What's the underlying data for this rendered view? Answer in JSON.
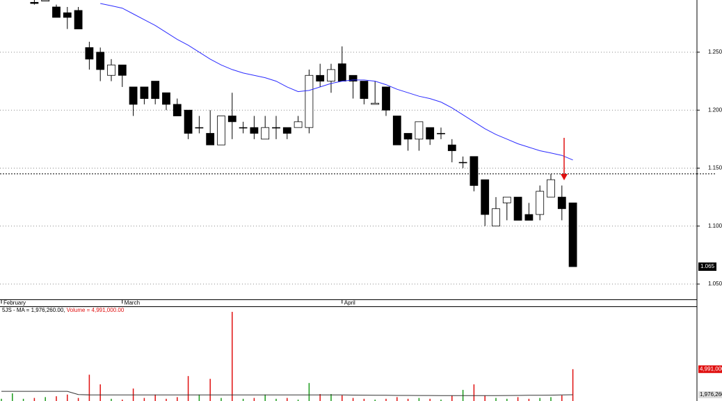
{
  "chart_data": [
    {
      "type": "candlestick",
      "categories": [
        "February",
        null,
        null,
        null,
        null,
        null,
        null,
        null,
        null,
        null,
        null,
        "March",
        null,
        null,
        null,
        null,
        null,
        null,
        null,
        null,
        null,
        null,
        null,
        null,
        null,
        null,
        null,
        null,
        null,
        null,
        null,
        "April",
        null,
        null,
        null,
        null,
        null,
        null,
        null,
        null,
        null,
        null,
        null,
        null,
        null,
        null,
        null,
        null,
        null,
        null,
        null,
        null,
        null
      ],
      "open": [
        null,
        null,
        null,
        1.293,
        1.294,
        1.289,
        1.284,
        1.286,
        1.254,
        1.25,
        1.23,
        1.239,
        1.22,
        1.22,
        1.225,
        1.215,
        1.205,
        1.2,
        1.185,
        1.18,
        1.17,
        1.195,
        1.185,
        1.185,
        1.175,
        1.185,
        1.185,
        1.185,
        1.185,
        1.23,
        1.225,
        1.24,
        1.23,
        1.225,
        1.205,
        1.22,
        1.195,
        1.18,
        1.175,
        1.185,
        1.18,
        1.17,
        1.155,
        1.16,
        1.14,
        1.1,
        1.12,
        1.125,
        1.11,
        1.11,
        1.125,
        1.125,
        1.12
      ],
      "high": [
        null,
        null,
        null,
        1.295,
        1.295,
        1.291,
        1.289,
        1.289,
        1.259,
        1.254,
        1.244,
        1.239,
        1.22,
        1.22,
        1.225,
        1.215,
        1.21,
        1.2,
        1.195,
        1.2,
        1.195,
        1.215,
        1.19,
        1.195,
        1.195,
        1.195,
        1.185,
        1.195,
        1.235,
        1.24,
        1.24,
        1.255,
        1.23,
        1.225,
        1.225,
        1.22,
        1.195,
        1.18,
        1.19,
        1.185,
        1.185,
        1.175,
        1.16,
        1.16,
        1.14,
        1.125,
        1.125,
        1.125,
        1.12,
        1.135,
        1.145,
        1.135,
        1.12
      ],
      "low": [
        null,
        null,
        null,
        1.291,
        1.294,
        1.28,
        1.27,
        1.27,
        1.235,
        1.225,
        1.225,
        1.22,
        1.195,
        1.205,
        1.205,
        1.2,
        1.195,
        1.175,
        1.18,
        1.17,
        1.17,
        1.175,
        1.18,
        1.175,
        1.175,
        1.175,
        1.175,
        1.185,
        1.18,
        1.22,
        1.215,
        1.225,
        1.21,
        1.205,
        1.205,
        1.195,
        1.17,
        1.165,
        1.165,
        1.17,
        1.175,
        1.155,
        1.15,
        1.13,
        1.1,
        1.1,
        1.105,
        1.105,
        1.105,
        1.105,
        1.125,
        1.105,
        1.065
      ],
      "close": [
        null,
        null,
        null,
        1.292,
        1.295,
        1.28,
        1.28,
        1.27,
        1.244,
        1.235,
        1.239,
        1.23,
        1.205,
        1.21,
        1.21,
        1.205,
        1.195,
        1.18,
        1.185,
        1.17,
        1.195,
        1.19,
        1.185,
        1.18,
        1.185,
        1.185,
        1.18,
        1.19,
        1.23,
        1.225,
        1.235,
        1.225,
        1.225,
        1.21,
        1.206,
        1.2,
        1.17,
        1.175,
        1.19,
        1.175,
        1.18,
        1.165,
        1.155,
        1.135,
        1.11,
        1.115,
        1.125,
        1.105,
        1.105,
        1.13,
        1.14,
        1.115,
        1.065
      ],
      "ma": [
        null,
        null,
        null,
        null,
        null,
        null,
        null,
        null,
        null,
        1.292,
        1.29,
        1.288,
        1.283,
        1.278,
        1.273,
        1.267,
        1.261,
        1.256,
        1.25,
        1.244,
        1.239,
        1.235,
        1.232,
        1.23,
        1.228,
        1.225,
        1.22,
        1.216,
        1.217,
        1.22,
        1.223,
        1.225,
        1.226,
        1.226,
        1.225,
        1.222,
        1.218,
        1.215,
        1.212,
        1.21,
        1.207,
        1.202,
        1.196,
        1.19,
        1.184,
        1.179,
        1.175,
        1.171,
        1.168,
        1.165,
        1.163,
        1.161,
        1.157
      ],
      "ma_color": "#2b2bff",
      "up_color": "#ffffff",
      "down_color": "#000000",
      "reference_line": 1.145,
      "last_price": {
        "value": 1.065,
        "label": "1.065"
      },
      "ylim": [
        1.038,
        1.295
      ],
      "yticks": [
        {
          "value": 1.05,
          "label": "1.050"
        },
        {
          "value": 1.1,
          "label": "1.100"
        },
        {
          "value": 1.15,
          "label": "1.150"
        },
        {
          "value": 1.2,
          "label": "1.200"
        },
        {
          "value": 1.25,
          "label": "1.250"
        }
      ],
      "grid": true
    },
    {
      "type": "bar",
      "legend_text": [
        "5JS - MA = 1,976,260.00,",
        "Volume = 4,991,000.00"
      ],
      "values": [
        1500000,
        2140000,
        1500000,
        1600000,
        1700000,
        1800000,
        2000000,
        1600000,
        4340000,
        3200000,
        1500000,
        1400000,
        2710000,
        1600000,
        2000000,
        1500000,
        1700000,
        4180000,
        2000000,
        3850000,
        1600000,
        11750000,
        1500000,
        1600000,
        2000000,
        1500000,
        1600000,
        1400000,
        3360000,
        2060000,
        2060000,
        1900000,
        1600000,
        1500000,
        1400000,
        1500000,
        1700000,
        1500000,
        1600000,
        1500000,
        1400000,
        1900000,
        2550000,
        3200000,
        1900000,
        1600000,
        1500000,
        1700000,
        1500000,
        1600000,
        1700000,
        1900000,
        4991000
      ],
      "ma": [
        2380000,
        2380000,
        2380000,
        2380000,
        2380000,
        2380000,
        2380000,
        2000000,
        1960000,
        1960000,
        1960000,
        1950000,
        1950000,
        1950000,
        1950000,
        1950000,
        1950000,
        1950000,
        1950000,
        1950000,
        1950000,
        1950000,
        1950000,
        1950000,
        1950000,
        1950000,
        1950000,
        1950000,
        1950000,
        1950000,
        1950000,
        1950000,
        1940000,
        1930000,
        1920000,
        1910000,
        1900000,
        1900000,
        1890000,
        1890000,
        1880000,
        1880000,
        1880000,
        1880000,
        1880000,
        1880000,
        1890000,
        1900000,
        1910000,
        1920000,
        1930000,
        1950000,
        1976260
      ],
      "ma_color": "#333333",
      "up_color": "#1a9a1a",
      "down_color": "#e01010",
      "last_volume": {
        "value": 4991000,
        "label": "4,991,000"
      },
      "last_ma": {
        "value": 1976260,
        "label": "1,976,260"
      },
      "ylim": [
        1240000,
        12320000
      ]
    }
  ]
}
